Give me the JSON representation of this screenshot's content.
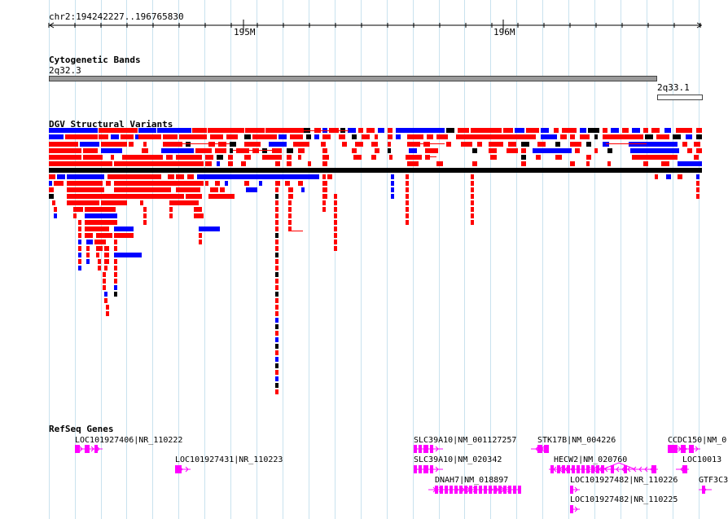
{
  "coords": {
    "label": "chr2:194242227..196765830"
  },
  "ruler": {
    "ticks": [
      {
        "label": "195M"
      },
      {
        "label": "196M"
      }
    ]
  },
  "cytobands": {
    "title": "Cytogenetic Bands",
    "bands": [
      {
        "name": "2q32.3"
      },
      {
        "name": "2q33.1"
      }
    ]
  },
  "dgv": {
    "title": "DGV Structural Variants",
    "colors": {
      "loss": "#ff0000",
      "gain": "#0000ff",
      "complex": "#000000",
      "inversion": "#8b4513"
    }
  },
  "refseq": {
    "title": "RefSeq Genes",
    "color": "#ff00ff",
    "genes": [
      {
        "label": "LOC101927406|NR_110222"
      },
      {
        "label": "LOC101927431|NR_110223"
      },
      {
        "label": "SLC39A10|NM_001127257"
      },
      {
        "label": "SLC39A10|NM_020342"
      },
      {
        "label": "DNAH7|NM_018897"
      },
      {
        "label": "STK17B|NM_004226"
      },
      {
        "label": "HECW2|NM_020760"
      },
      {
        "label": "LOC101927482|NR_110226"
      },
      {
        "label": "LOC101927482|NR_110225"
      },
      {
        "label": "CCDC150|NM_0"
      },
      {
        "label": "LOC10013"
      },
      {
        "label": "GTF3C3"
      }
    ]
  }
}
